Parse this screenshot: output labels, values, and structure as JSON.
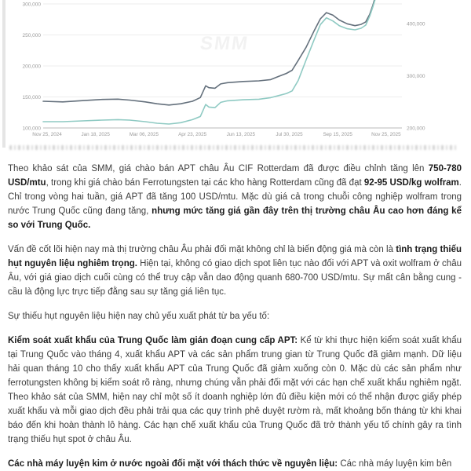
{
  "page": {
    "background": "#ffffff"
  },
  "chart": {
    "watermark": "SMM",
    "colors": {
      "series_dark": "#64707c",
      "series_teal": "#8fcac3",
      "grid": "#ededed",
      "baseline": "#b8b8b8",
      "axis_text": "#9a9a9a"
    }
  },
  "chart_data": {
    "type": "line",
    "title": "",
    "grid": true,
    "x_tick_labels": [
      "Nov 25, 2024",
      "Jan 18, 2025",
      "Mar 06, 2025",
      "Apr 23, 2025",
      "Jun 13, 2025",
      "Jul 30, 2025",
      "Sep 15, 2025",
      "Nov 25, 2025"
    ],
    "left_axis": {
      "tick_labels": [
        "300,000",
        "250,000",
        "200,000",
        "150,000",
        "100,000"
      ],
      "tick_values": [
        300000,
        250000,
        200000,
        150000,
        100000
      ],
      "range": [
        100000,
        306000
      ]
    },
    "right_axis": {
      "tick_labels": [
        "400,000",
        "300,000",
        "200,000"
      ],
      "tick_values": [
        400000,
        300000,
        200000
      ],
      "range": [
        200000,
        445000
      ]
    },
    "series": [
      {
        "name": "series-dark-gray",
        "axis": "left",
        "color": "#64707c",
        "points": [
          [
            0.0,
            143000
          ],
          [
            0.055,
            142000
          ],
          [
            0.11,
            144000
          ],
          [
            0.165,
            146000
          ],
          [
            0.209,
            146500
          ],
          [
            0.242,
            145000
          ],
          [
            0.286,
            142000
          ],
          [
            0.319,
            139000
          ],
          [
            0.352,
            137000
          ],
          [
            0.385,
            139000
          ],
          [
            0.418,
            143000
          ],
          [
            0.44,
            149000
          ],
          [
            0.455,
            168000
          ],
          [
            0.464,
            165000
          ],
          [
            0.481,
            164000
          ],
          [
            0.497,
            171000
          ],
          [
            0.516,
            173000
          ],
          [
            0.56,
            175000
          ],
          [
            0.604,
            176000
          ],
          [
            0.637,
            178000
          ],
          [
            0.659,
            183000
          ],
          [
            0.681,
            188000
          ],
          [
            0.697,
            193000
          ],
          [
            0.714,
            209000
          ],
          [
            0.736,
            230000
          ],
          [
            0.758,
            256000
          ],
          [
            0.776,
            276000
          ],
          [
            0.793,
            286000
          ],
          [
            0.811,
            282000
          ],
          [
            0.829,
            274000
          ],
          [
            0.851,
            268000
          ],
          [
            0.873,
            265000
          ],
          [
            0.89,
            267000
          ],
          [
            0.903,
            271000
          ],
          [
            0.914,
            283000
          ],
          [
            0.923,
            298000
          ],
          [
            0.93,
            312000
          ]
        ]
      },
      {
        "name": "series-teal",
        "axis": "right",
        "color": "#8fcac3",
        "points": [
          [
            0.0,
            212000
          ],
          [
            0.055,
            212000
          ],
          [
            0.11,
            213500
          ],
          [
            0.165,
            215000
          ],
          [
            0.209,
            216000
          ],
          [
            0.242,
            215000
          ],
          [
            0.286,
            212000
          ],
          [
            0.319,
            209000
          ],
          [
            0.352,
            207500
          ],
          [
            0.385,
            210000
          ],
          [
            0.418,
            216000
          ],
          [
            0.44,
            222000
          ],
          [
            0.455,
            245000
          ],
          [
            0.464,
            240000
          ],
          [
            0.481,
            239000
          ],
          [
            0.497,
            249000
          ],
          [
            0.516,
            252000
          ],
          [
            0.56,
            254000
          ],
          [
            0.604,
            255000
          ],
          [
            0.637,
            258000
          ],
          [
            0.659,
            262000
          ],
          [
            0.681,
            266000
          ],
          [
            0.697,
            271000
          ],
          [
            0.714,
            291000
          ],
          [
            0.736,
            330000
          ],
          [
            0.758,
            368000
          ],
          [
            0.776,
            398000
          ],
          [
            0.793,
            411000
          ],
          [
            0.811,
            405000
          ],
          [
            0.829,
            396000
          ],
          [
            0.851,
            390000
          ],
          [
            0.873,
            388000
          ],
          [
            0.89,
            391000
          ],
          [
            0.903,
            397000
          ],
          [
            0.914,
            414000
          ],
          [
            0.923,
            432000
          ],
          [
            0.93,
            448000
          ]
        ]
      }
    ]
  },
  "article": {
    "paragraphs": [
      {
        "runs": [
          {
            "text": "Theo khảo sát của SMM, giá chào bán APT châu Âu CIF Rotterdam đã được điều chỉnh tăng lên ",
            "bold": false
          },
          {
            "text": "750-780 USD/mtu",
            "bold": true
          },
          {
            "text": ", trong khi giá chào bán Ferrotungsten tại các kho hàng Rotterdam cũng đã đạt ",
            "bold": false
          },
          {
            "text": "92-95 USD/kg wolfram",
            "bold": true
          },
          {
            "text": ". Chỉ trong vòng hai tuần, giá APT đã tăng 100 USD/mtu. Mặc dù giá cả trong chuỗi công nghiệp wolfram trong nước Trung Quốc cũng đang tăng, ",
            "bold": false
          },
          {
            "text": "nhưng mức tăng giá gần đây trên thị trường châu Âu cao hơn đáng kể so với Trung Quốc.",
            "bold": true
          }
        ]
      },
      {
        "runs": [
          {
            "text": "Vấn đề cốt lõi hiện nay mà thị trường châu Âu phải đối mặt không chỉ là biến động giá mà còn là ",
            "bold": false
          },
          {
            "text": "tình trạng thiếu hụt nguyên liệu nghiêm trọng.",
            "bold": true
          },
          {
            "text": " Hiện tại, không có giao dịch spot liên tục nào đối với APT và oxit wolfram ở châu Âu, với giá giao dịch cuối cùng có thể truy cập vẫn dao động quanh 680-700 USD/mtu. Sự mất cân bằng cung - cầu là động lực trực tiếp đằng sau sự tăng giá liên tục.",
            "bold": false
          }
        ]
      },
      {
        "runs": [
          {
            "text": "Sự thiếu hụt nguyên liệu hiện nay chủ yếu xuất phát từ ba yếu tố:",
            "bold": false
          }
        ]
      },
      {
        "runs": [
          {
            "text": "Kiểm soát xuất khẩu của Trung Quốc làm gián đoạn cung cấp APT:",
            "bold": true
          },
          {
            "text": " Kể từ khi thực hiện kiểm soát xuất khẩu tại Trung Quốc vào tháng 4, xuất khẩu APT và các sản phẩm trung gian từ Trung Quốc đã giảm mạnh. Dữ liệu hải quan tháng 10 cho thấy xuất khẩu APT của Trung Quốc đã giảm xuống còn 0. Mặc dù các sản phẩm như ferrotungsten không bị kiểm soát rõ ràng, nhưng chúng vẫn phải đối mặt với các hạn chế xuất khẩu nghiêm ngặt. Theo khảo sát của SMM, hiện nay chỉ một số ít doanh nghiệp lớn đủ điều kiện mới có thể nhận được giấy phép xuất khẩu và mỗi giao dịch đều phải trải qua các quy trình phê duyệt rườm rà, mất khoảng bốn tháng từ khi khai báo đến khi hoàn thành lô hàng. Các hạn chế xuất khẩu của Trung Quốc đã trở thành yếu tố chính gây ra tình trạng thiếu hụt spot ở châu Âu.",
            "bold": false
          }
        ]
      },
      {
        "runs": [
          {
            "text": "Các nhà máy luyện kim ở nước ngoài đối mặt với thách thức về nguyên liệu:",
            "bold": true
          },
          {
            "text": " Các nhà máy luyện kim bên",
            "bold": false
          }
        ]
      }
    ]
  }
}
